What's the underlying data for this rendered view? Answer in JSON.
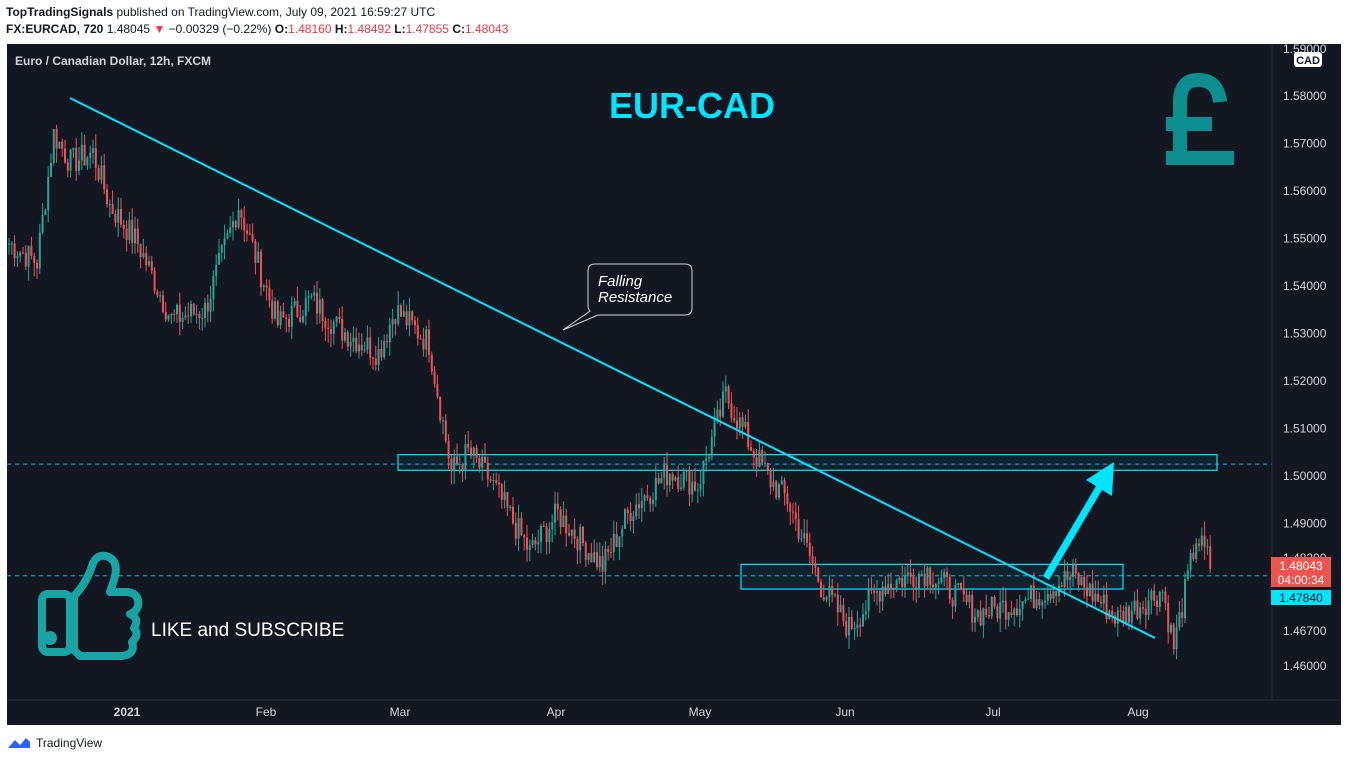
{
  "header": {
    "author": "TopTradingSignals",
    "published_text": "published on TradingView.com, July 09, 2021 16:59:27 UTC",
    "symbol": "FX:EURCAD, 720",
    "last": "1.48045",
    "change_arrow": "▼",
    "change": "−0.00329 (−0.22%)",
    "o_label": "O:",
    "o_val": "1.48160",
    "h_label": "H:",
    "h_val": "1.48492",
    "l_label": "L:",
    "l_val": "1.47855",
    "c_label": "C:",
    "c_val": "1.48043"
  },
  "chart_title": "Euro / Canadian Dollar, 12h, FXCM",
  "currency_badge": "CAD",
  "overlay_title": "EUR-CAD",
  "callout_text": [
    "Falling",
    "Resistance"
  ],
  "like_text": "LIKE and SUBSCRIBE",
  "footer": {
    "brand": "TradingView"
  },
  "price_tags": {
    "current": "1.48043",
    "countdown": "04:00:34",
    "line": "1.47840"
  },
  "colors": {
    "background": "#131722",
    "up": "#26a69a",
    "down": "#ef5350",
    "trendline": "#00e5ff",
    "zone": "#00e5ff",
    "pound": "#0d8f8f",
    "like_icon": "#1aa3a3",
    "text": "#d1d4dc"
  },
  "icons": {
    "pound": "pound-sign-icon",
    "like": "thumbs-up-icon",
    "logo": "tradingview-logo-icon"
  },
  "chart_data": {
    "type": "candlestick",
    "title": "Euro / Canadian Dollar, 12h, FXCM",
    "y_ticks": [
      "1.58000",
      "1.57000",
      "1.56000",
      "1.55000",
      "1.54000",
      "1.53000",
      "1.52000",
      "1.51000",
      "1.50000",
      "1.49000",
      "1.48200",
      "1.46700",
      "1.46000"
    ],
    "y_tick_values": [
      1.58,
      1.57,
      1.56,
      1.55,
      1.54,
      1.53,
      1.52,
      1.51,
      1.5,
      1.49,
      1.482,
      1.467,
      1.46
    ],
    "x_ticks": [
      "2021",
      "Feb",
      "Mar",
      "Apr",
      "May",
      "Jun",
      "Jul",
      "Aug"
    ],
    "ylim": [
      1.452,
      1.589
    ],
    "pivots": [
      [
        0,
        1.549
      ],
      [
        10,
        1.545
      ],
      [
        16,
        1.572
      ],
      [
        22,
        1.566
      ],
      [
        30,
        1.568
      ],
      [
        36,
        1.557
      ],
      [
        46,
        1.549
      ],
      [
        58,
        1.533
      ],
      [
        70,
        1.535
      ],
      [
        82,
        1.557
      ],
      [
        96,
        1.532
      ],
      [
        108,
        1.537
      ],
      [
        118,
        1.531
      ],
      [
        132,
        1.526
      ],
      [
        138,
        1.535
      ],
      [
        150,
        1.528
      ],
      [
        158,
        1.501
      ],
      [
        164,
        1.505
      ],
      [
        172,
        1.499
      ],
      [
        186,
        1.484
      ],
      [
        196,
        1.492
      ],
      [
        212,
        1.481
      ],
      [
        222,
        1.493
      ],
      [
        236,
        1.501
      ],
      [
        246,
        1.498
      ],
      [
        256,
        1.517
      ],
      [
        266,
        1.505
      ],
      [
        272,
        1.499
      ],
      [
        278,
        1.495
      ],
      [
        290,
        1.477
      ],
      [
        300,
        1.468
      ],
      [
        312,
        1.477
      ],
      [
        328,
        1.48
      ],
      [
        346,
        1.471
      ],
      [
        364,
        1.474
      ],
      [
        380,
        1.479
      ],
      [
        396,
        1.47
      ],
      [
        412,
        1.476
      ],
      [
        416,
        1.464
      ],
      [
        424,
        1.487
      ],
      [
        430,
        1.481
      ]
    ],
    "trendline": {
      "from": [
        "Dec 2020",
        1.58
      ],
      "to": [
        "Jul 2021",
        1.466
      ]
    },
    "zones": [
      {
        "top": 1.5045,
        "bottom": 1.5012,
        "label": "resistance zone"
      },
      {
        "top": 1.4814,
        "bottom": 1.4762,
        "label": "breakout zone"
      }
    ],
    "dashed_levels": [
      1.5025,
      1.479
    ],
    "last_price": 1.48043,
    "annotations": [
      "EUR-CAD",
      "Falling Resistance"
    ]
  }
}
